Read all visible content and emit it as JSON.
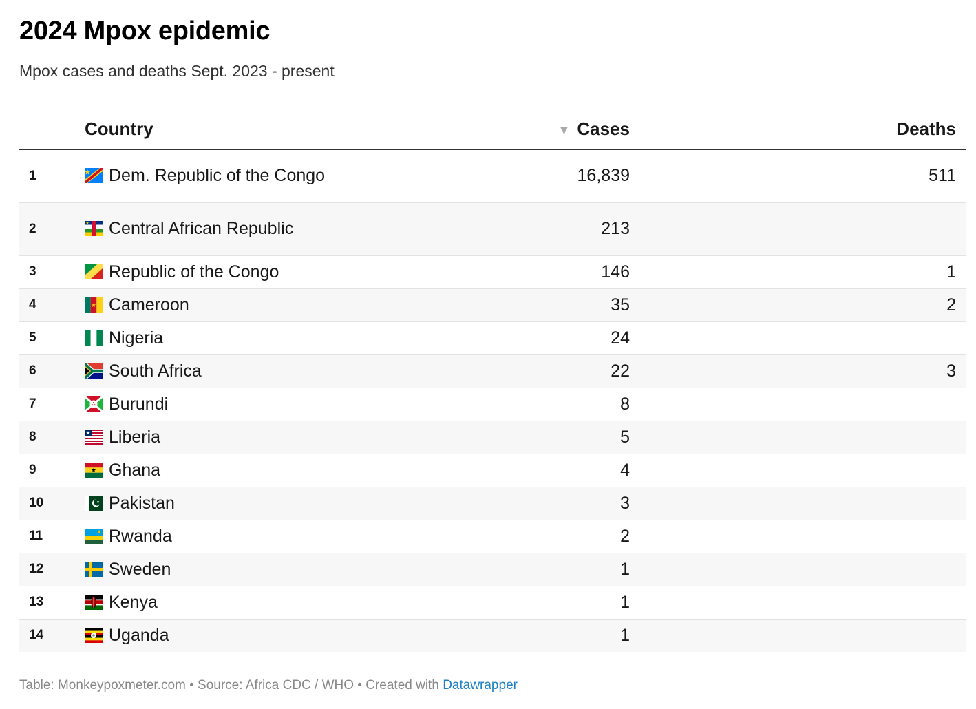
{
  "title": "2024 Mpox epidemic",
  "subtitle": "Mpox cases and deaths Sept. 2023 - present",
  "table": {
    "columns": {
      "country": "Country",
      "cases": "Cases",
      "deaths": "Deaths"
    },
    "sort_indicator": "▼",
    "rows": [
      {
        "rank": "1",
        "country": "Dem. Republic of the Congo",
        "flag": "cd-flag",
        "cases": "16,839",
        "deaths": "511"
      },
      {
        "rank": "2",
        "country": "Central African Republic",
        "flag": "cf-flag",
        "cases": "213",
        "deaths": ""
      },
      {
        "rank": "3",
        "country": "Republic of the Congo",
        "flag": "cg-flag",
        "cases": "146",
        "deaths": "1"
      },
      {
        "rank": "4",
        "country": "Cameroon",
        "flag": "cm-flag",
        "cases": "35",
        "deaths": "2"
      },
      {
        "rank": "5",
        "country": "Nigeria",
        "flag": "ng-flag",
        "cases": "24",
        "deaths": ""
      },
      {
        "rank": "6",
        "country": "South Africa",
        "flag": "za-flag",
        "cases": "22",
        "deaths": "3"
      },
      {
        "rank": "7",
        "country": "Burundi",
        "flag": "bi-flag",
        "cases": "8",
        "deaths": ""
      },
      {
        "rank": "8",
        "country": "Liberia",
        "flag": "lr-flag",
        "cases": "5",
        "deaths": ""
      },
      {
        "rank": "9",
        "country": "Ghana",
        "flag": "gh-flag",
        "cases": "4",
        "deaths": ""
      },
      {
        "rank": "10",
        "country": "Pakistan",
        "flag": "pk-flag",
        "cases": "3",
        "deaths": ""
      },
      {
        "rank": "11",
        "country": "Rwanda",
        "flag": "rw-flag",
        "cases": "2",
        "deaths": ""
      },
      {
        "rank": "12",
        "country": "Sweden",
        "flag": "se-flag",
        "cases": "1",
        "deaths": ""
      },
      {
        "rank": "13",
        "country": "Kenya",
        "flag": "ke-flag",
        "cases": "1",
        "deaths": ""
      },
      {
        "rank": "14",
        "country": "Uganda",
        "flag": "ug-flag",
        "cases": "1",
        "deaths": ""
      }
    ]
  },
  "footer": {
    "text": "Table: Monkeypoxmeter.com • Source: Africa CDC / WHO • Created with ",
    "link": "Datawrapper"
  },
  "colors": {
    "link": "#1d81c4",
    "stripe": "#f7f7f7",
    "footer_text": "#888888"
  }
}
